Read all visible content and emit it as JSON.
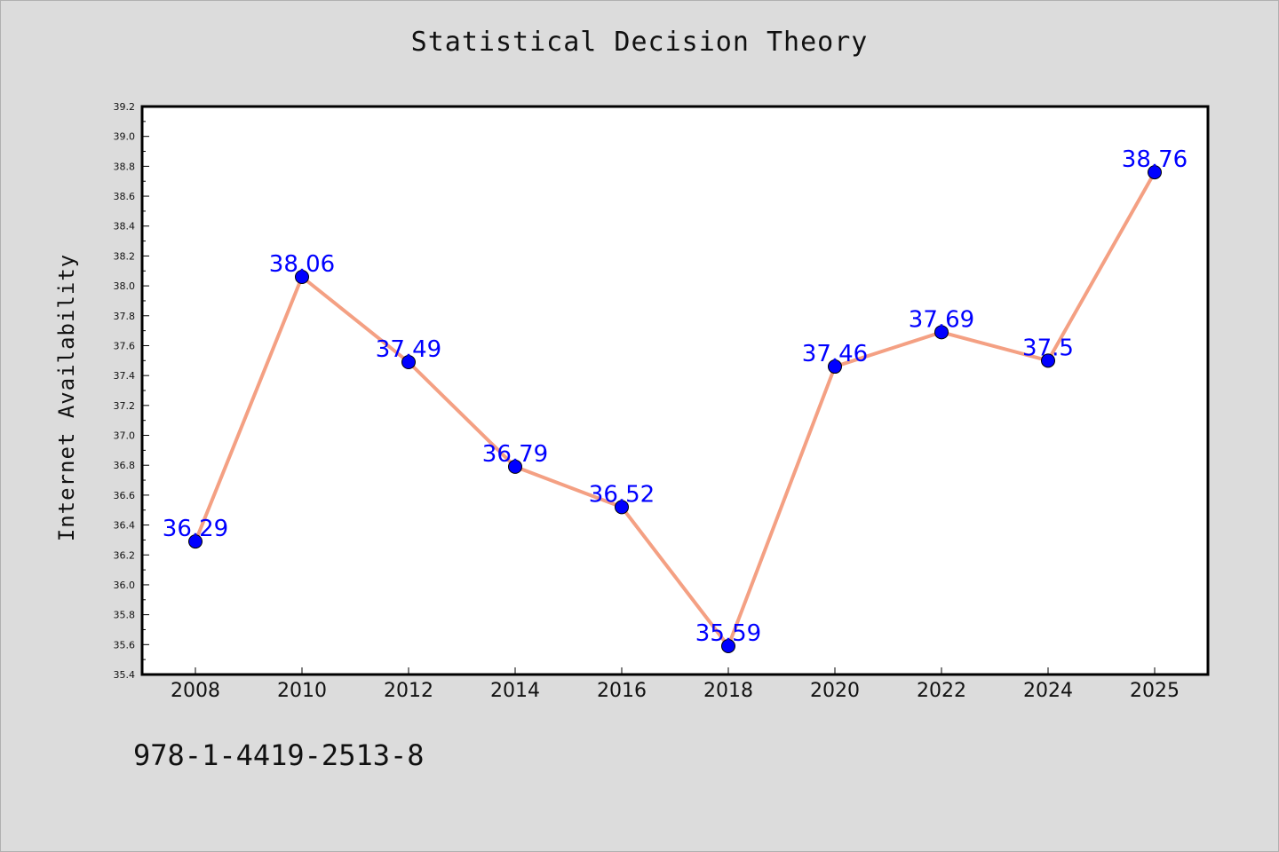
{
  "colors": {
    "background": "#dcdcdc",
    "plot_background": "#ffffff",
    "line": "#f4a083",
    "marker": "#0000ff",
    "data_label": "#0000ff",
    "text": "#111111"
  },
  "footnote": "978-1-4419-2513-8",
  "chart_data": {
    "type": "line",
    "title": "Statistical Decision Theory",
    "xlabel": "",
    "ylabel": "Internet Availability",
    "categories": [
      "2008",
      "2010",
      "2012",
      "2014",
      "2016",
      "2018",
      "2020",
      "2022",
      "2024",
      "2025"
    ],
    "series": [
      {
        "values": [
          36.29,
          38.06,
          37.49,
          36.79,
          36.52,
          35.59,
          37.46,
          37.69,
          37.5,
          38.76
        ],
        "labels": [
          "36.29",
          "38.06",
          "37.49",
          "36.79",
          "36.52",
          "35.59",
          "37.46",
          "37.69",
          "37.5",
          "38.76"
        ]
      }
    ],
    "ylim": [
      35.4,
      39.2
    ],
    "yticks": [
      "35.4",
      "35.6",
      "35.8",
      "36.0",
      "36.2",
      "36.4",
      "36.6",
      "36.8",
      "37.0",
      "37.2",
      "37.4",
      "37.6",
      "37.8",
      "38.0",
      "38.2",
      "38.4",
      "38.6",
      "38.8",
      "39.0",
      "39.2"
    ],
    "grid": false,
    "legend": "none"
  }
}
